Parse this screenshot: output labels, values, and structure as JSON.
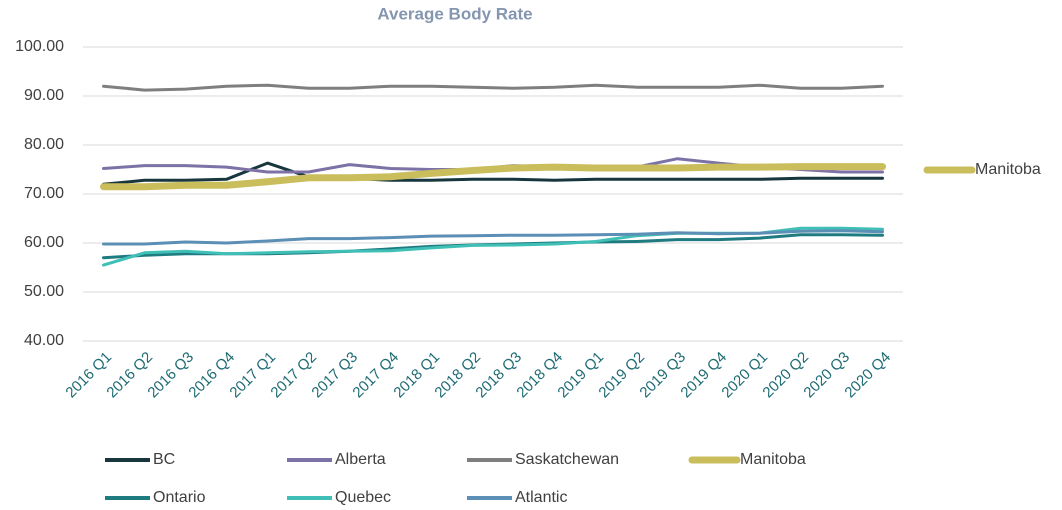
{
  "chart_data": {
    "type": "line",
    "title": "Average Body Rate",
    "categories": [
      "2016 Q1",
      "2016 Q2",
      "2016 Q3",
      "2016 Q4",
      "2017 Q1",
      "2017 Q2",
      "2017 Q3",
      "2017 Q4",
      "2018 Q1",
      "2018 Q2",
      "2018 Q3",
      "2018 Q4",
      "2019 Q1",
      "2019 Q2",
      "2019 Q3",
      "2019 Q4",
      "2020 Q1",
      "2020 Q2",
      "2020 Q3",
      "2020 Q4"
    ],
    "series": [
      {
        "name": "BC",
        "color": "#17363d",
        "values": [
          72,
          72.8,
          72.8,
          73,
          76.3,
          73.5,
          73.2,
          72.8,
          72.8,
          73,
          73,
          72.8,
          73,
          73,
          73,
          73,
          73,
          73.2,
          73.2,
          73.2
        ]
      },
      {
        "name": "Alberta",
        "color": "#7d72a6",
        "values": [
          75.2,
          75.8,
          75.8,
          75.5,
          74.5,
          74.5,
          76,
          75.2,
          75,
          75,
          75.8,
          75.5,
          75.5,
          75.5,
          77.2,
          76.3,
          75.5,
          75,
          74.5,
          74.5
        ]
      },
      {
        "name": "Saskatchewan",
        "color": "#7f7f7f",
        "values": [
          92,
          91.2,
          91.4,
          92,
          92.2,
          91.6,
          91.6,
          92,
          92,
          91.8,
          91.6,
          91.8,
          92.2,
          91.8,
          91.8,
          91.8,
          92.2,
          91.6,
          91.6,
          92
        ]
      },
      {
        "name": "Manitoba",
        "color": "#c9bd5c",
        "values": [
          71.5,
          71.5,
          71.8,
          71.8,
          72.5,
          73.3,
          73.3,
          73.5,
          74.2,
          74.8,
          75.3,
          75.5,
          75.3,
          75.3,
          75.3,
          75.5,
          75.5,
          75.6,
          75.6,
          75.6
        ]
      },
      {
        "name": "Ontario",
        "color": "#1e7b80",
        "values": [
          57,
          57.5,
          57.8,
          57.8,
          57.8,
          58,
          58.3,
          58.8,
          59.3,
          59.6,
          59.8,
          60,
          60.2,
          60.3,
          60.7,
          60.7,
          61,
          61.7,
          61.7,
          61.6
        ]
      },
      {
        "name": "Quebec",
        "color": "#3fbfb5",
        "values": [
          55.5,
          58,
          58.3,
          57.8,
          58,
          58.2,
          58.3,
          58.4,
          59,
          59.5,
          59.6,
          59.8,
          60.3,
          61.5,
          62,
          62,
          62,
          63,
          63,
          62.8
        ]
      },
      {
        "name": "Atlantic",
        "color": "#5b8fb5",
        "values": [
          59.8,
          59.8,
          60.2,
          60,
          60.4,
          60.9,
          60.9,
          61.1,
          61.4,
          61.5,
          61.6,
          61.6,
          61.7,
          61.8,
          62.1,
          61.9,
          62,
          62.4,
          62.5,
          62.3
        ]
      }
    ],
    "ylim": [
      40,
      100
    ],
    "yticks": [
      {
        "value": 40,
        "label": "40.00"
      },
      {
        "value": 50,
        "label": "50.00"
      },
      {
        "value": 60,
        "label": "60.00"
      },
      {
        "value": 70,
        "label": "70.00"
      },
      {
        "value": 80,
        "label": "80.00"
      },
      {
        "value": 90,
        "label": "90.00"
      },
      {
        "value": 100,
        "label": "100.00"
      }
    ],
    "grid": true
  }
}
